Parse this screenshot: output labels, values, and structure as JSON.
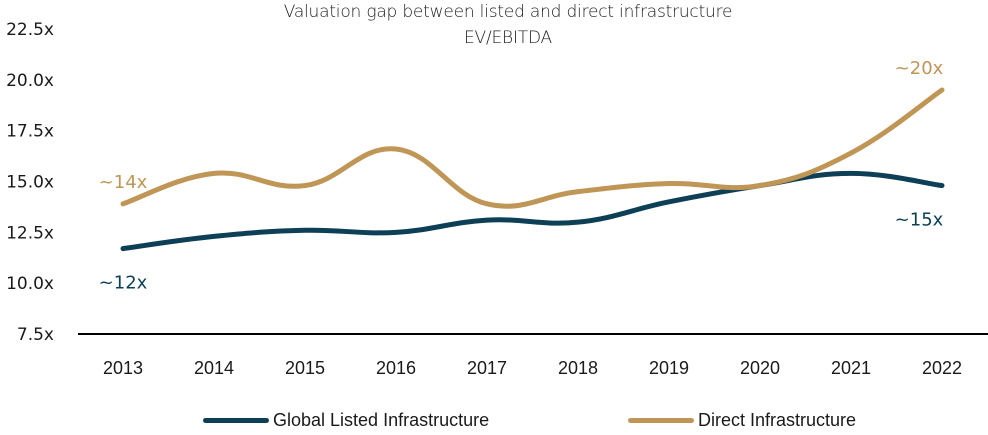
{
  "chart_data": {
    "type": "line",
    "title": "Valuation gap between listed and direct infrastructure",
    "subtitle": "EV/EBITDA",
    "xlabel": "",
    "ylabel": "",
    "categories": [
      "2013",
      "2014",
      "2015",
      "2016",
      "2017",
      "2018",
      "2019",
      "2020",
      "2021",
      "2022"
    ],
    "yticks": [
      "7.5x",
      "10.0x",
      "12.5x",
      "15.0x",
      "17.5x",
      "20.0x",
      "22.5x"
    ],
    "ytick_values": [
      7.5,
      10.0,
      12.5,
      15.0,
      17.5,
      20.0,
      22.5
    ],
    "ylim": [
      7.5,
      22.5
    ],
    "grid": false,
    "legend_position": "bottom",
    "series": [
      {
        "name": "Global Listed Infrastructure",
        "color": "#0d3f56",
        "values": [
          11.7,
          12.3,
          12.6,
          12.5,
          13.1,
          13.0,
          14.0,
          14.8,
          15.4,
          14.8
        ]
      },
      {
        "name": "Direct Infrastructure",
        "color": "#bf9655",
        "values": [
          13.9,
          15.4,
          14.8,
          16.6,
          13.9,
          14.5,
          14.9,
          14.8,
          16.4,
          19.5
        ]
      }
    ],
    "annotations": [
      {
        "text": "~14x",
        "series": "Direct Infrastructure",
        "category": "2013",
        "position": "above"
      },
      {
        "text": "~12x",
        "series": "Global Listed Infrastructure",
        "category": "2013",
        "position": "below"
      },
      {
        "text": "~20x",
        "series": "Direct Infrastructure",
        "category": "2022",
        "position": "above"
      },
      {
        "text": "~15x",
        "series": "Global Listed Infrastructure",
        "category": "2022",
        "position": "below"
      }
    ]
  }
}
